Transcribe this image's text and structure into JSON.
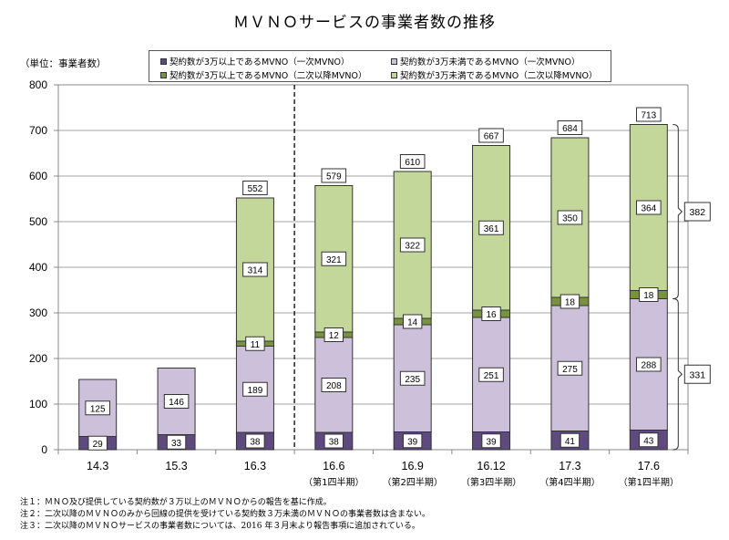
{
  "title": "ＭＶＮＯサービスの事業者数の推移",
  "unit_label": "（単位：事業者数）",
  "legend": [
    {
      "label": "契約数が3万以上であるMVNO（一次MVNO）",
      "color": "#5f4a7f"
    },
    {
      "label": "契約数が3万未満であるMVNO（一次MVNO）",
      "color": "#ccc0da"
    },
    {
      "label": "契約数が3万以上であるMVNO（二次以降MVNO）",
      "color": "#77933c"
    },
    {
      "label": "契約数が3万未満であるMVNO（二次以降MVNO）",
      "color": "#c4d79b"
    }
  ],
  "notes": [
    "注１：ＭＮＯ及び提供している契約数が３万以上のＭＶＮＯからの報告を基に作成。",
    "注２：二次以降のＭＶＮＯのみから回線の提供を受けている契約数３万未満のＭＶＮＯの事業者数は含まない。",
    "注３：二次以降のＭＶＮＯサービスの事業者数については、2016 年３月末より報告事項に追加されている。"
  ],
  "chart_data": {
    "type": "bar",
    "stacked": true,
    "title": "ＭＶＮＯサービスの事業者数の推移",
    "xlabel": "",
    "ylabel": "（単位：事業者数）",
    "ylim": [
      0,
      800
    ],
    "yticks": [
      0,
      100,
      200,
      300,
      400,
      500,
      600,
      700,
      800
    ],
    "grid": true,
    "legend_position": "top",
    "categories": [
      "14.3",
      "15.3",
      "16.3",
      "16.6",
      "16.9",
      "16.12",
      "17.3",
      "17.6"
    ],
    "category_sublabels": [
      "",
      "",
      "",
      "（第1四半期）",
      "（第2四半期）",
      "（第3四半期）",
      "（第4四半期）",
      "（第1四半期）"
    ],
    "series": [
      {
        "name": "契約数が3万以上であるMVNO（一次MVNO）",
        "color": "#5f4a7f",
        "values": [
          29,
          33,
          38,
          38,
          39,
          39,
          41,
          43
        ]
      },
      {
        "name": "契約数が3万未満であるMVNO（一次MVNO）",
        "color": "#ccc0da",
        "values": [
          125,
          146,
          189,
          208,
          235,
          251,
          275,
          288
        ]
      },
      {
        "name": "契約数が3万以上であるMVNO（二次以降MVNO）",
        "color": "#77933c",
        "values": [
          null,
          null,
          11,
          12,
          14,
          16,
          18,
          18
        ]
      },
      {
        "name": "契約数が3万未満であるMVNO（二次以降MVNO）",
        "color": "#c4d79b",
        "values": [
          null,
          null,
          314,
          321,
          322,
          361,
          350,
          364
        ]
      }
    ],
    "totals": [
      null,
      null,
      552,
      579,
      610,
      667,
      684,
      713
    ],
    "divider_after_category": "16.3",
    "bracket_annotations": [
      {
        "category": "17.6",
        "range": [
          331,
          713
        ],
        "label": "382"
      },
      {
        "category": "17.6",
        "range": [
          0,
          331
        ],
        "label": "331"
      }
    ]
  }
}
